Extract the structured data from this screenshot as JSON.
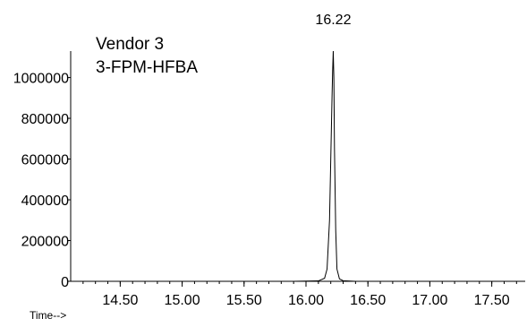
{
  "annotations": {
    "line1": "Vendor 3",
    "line2": "3-FPM-HFBA"
  },
  "x_axis_caption": "Time-->",
  "chart_data": {
    "type": "line",
    "title": "",
    "xlabel": "Time-->",
    "ylabel": "",
    "xlim": [
      14.1,
      17.77
    ],
    "ylim": [
      0,
      1130000
    ],
    "x_ticks": [
      14.5,
      15.0,
      15.5,
      16.0,
      16.5,
      17.0,
      17.5
    ],
    "x_tick_labels": [
      "14.50",
      "15.00",
      "15.50",
      "16.00",
      "16.50",
      "17.00",
      "17.50"
    ],
    "y_ticks": [
      0,
      200000,
      400000,
      600000,
      800000,
      1000000
    ],
    "y_tick_labels": [
      "0",
      "200000",
      "400000",
      "600000",
      "800000",
      "1000000"
    ],
    "grid": false,
    "peak_label": "16.22",
    "series": [
      {
        "x": [
          14.1,
          15.9,
          16.1,
          16.15,
          16.17,
          16.19,
          16.2,
          16.21,
          16.215,
          16.22,
          16.225,
          16.23,
          16.24,
          16.25,
          16.27,
          16.3,
          16.4,
          17.77
        ],
        "values": [
          0,
          0,
          2000,
          15000,
          60000,
          300000,
          600000,
          900000,
          1030000,
          1130000,
          1000000,
          650000,
          250000,
          60000,
          12000,
          3000,
          0,
          0
        ]
      }
    ],
    "color": "#000000"
  }
}
